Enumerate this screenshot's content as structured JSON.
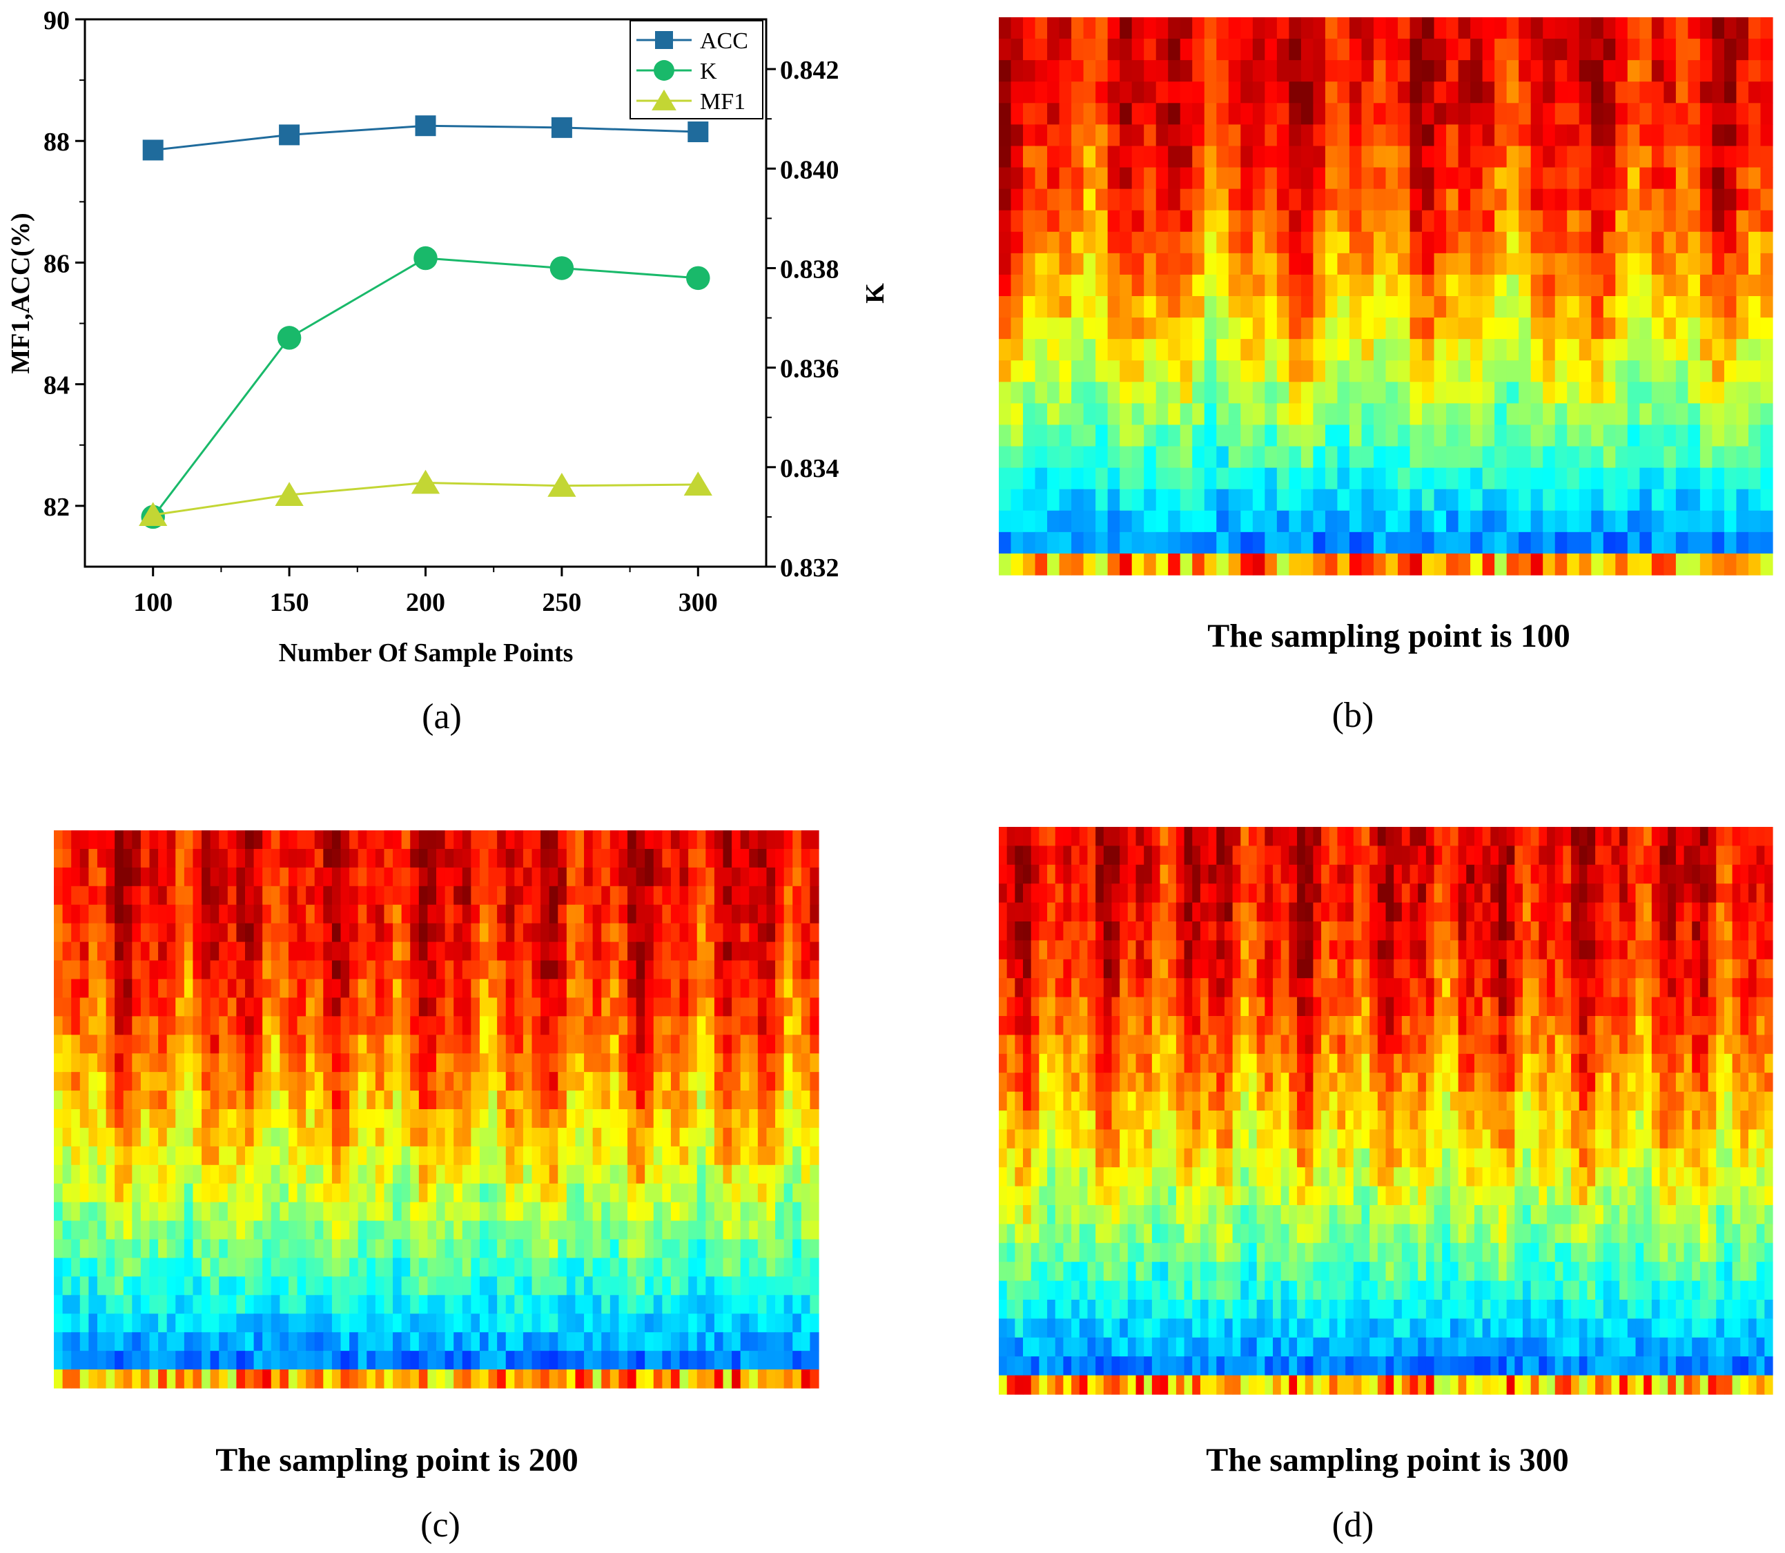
{
  "panels": {
    "a": {
      "label": "(a)"
    },
    "b": {
      "label": "(b)",
      "caption": "The sampling point is 100"
    },
    "c": {
      "label": "(c)",
      "caption": "The sampling point is 200"
    },
    "d": {
      "label": "(d)",
      "caption": "The sampling point is 300"
    }
  },
  "colors": {
    "acc": "#1f6b9c",
    "k": "#19b96a",
    "mf1": "#c3d634"
  },
  "chart_data": [
    {
      "type": "line",
      "panel": "a",
      "title": "",
      "xlabel": "Number Of Sample Points",
      "ylabel": "MF1,ACC(%)",
      "y2label": "K",
      "x": [
        100,
        150,
        200,
        250,
        300
      ],
      "xticks": [
        "100",
        "150",
        "200",
        "250",
        "300"
      ],
      "xlim": [
        75,
        325
      ],
      "ylim": [
        81,
        90
      ],
      "yticks": [
        "82",
        "84",
        "86",
        "88",
        "90"
      ],
      "y2lim": [
        0.832,
        0.843
      ],
      "y2ticks": [
        "0.832",
        "0.834",
        "0.836",
        "0.838",
        "0.840",
        "0.842"
      ],
      "legend_position": "top-right",
      "series": [
        {
          "name": "ACC",
          "axis": "left",
          "marker": "square",
          "values": [
            87.85,
            88.1,
            88.25,
            88.22,
            88.15
          ]
        },
        {
          "name": "K",
          "axis": "right",
          "marker": "circle",
          "values": [
            0.833,
            0.8366,
            0.8382,
            0.838,
            0.8378
          ]
        },
        {
          "name": "MF1",
          "axis": "left",
          "marker": "triangle",
          "values": [
            81.85,
            82.18,
            82.38,
            82.33,
            82.35
          ]
        }
      ]
    },
    {
      "type": "heatmap",
      "panel": "b",
      "title": "The sampling point is 100",
      "colormap": "jet",
      "sampling_points": 100
    },
    {
      "type": "heatmap",
      "panel": "c",
      "title": "The sampling point is 200",
      "colormap": "jet",
      "sampling_points": 200
    },
    {
      "type": "heatmap",
      "panel": "d",
      "title": "The sampling point is 300",
      "colormap": "jet",
      "sampling_points": 300
    }
  ]
}
